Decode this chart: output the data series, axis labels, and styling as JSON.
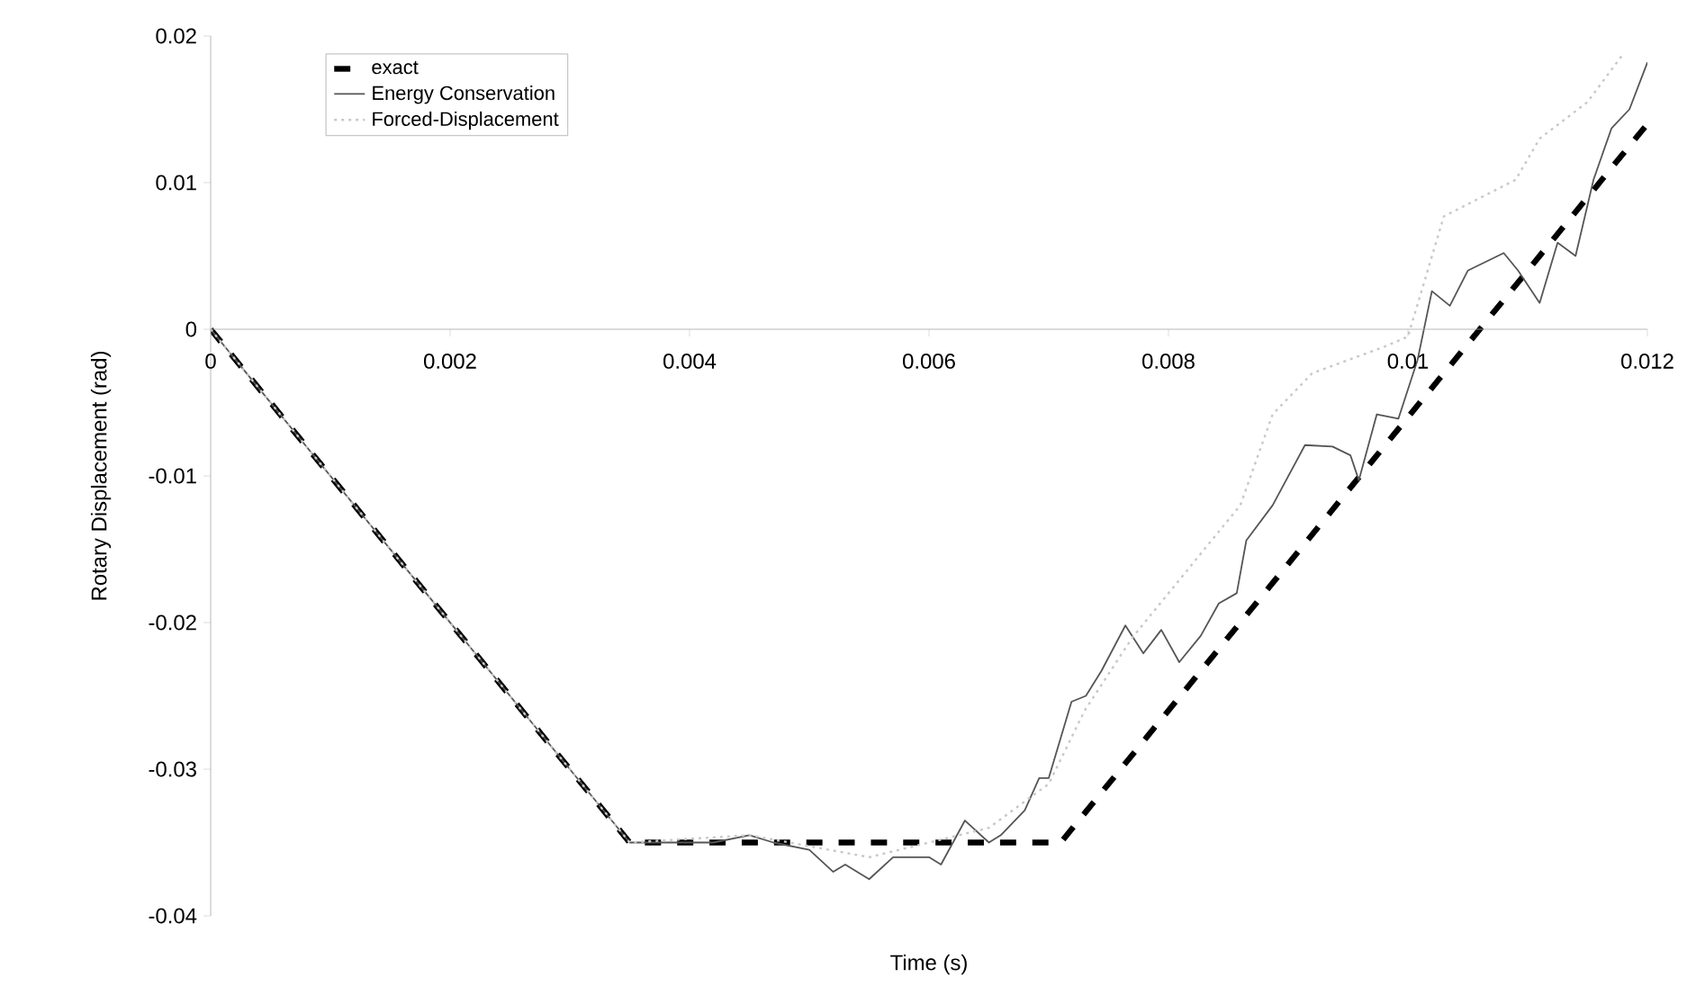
{
  "chart_data": {
    "type": "line",
    "xlabel": "Time (s)",
    "ylabel": "Rotary Displacement (rad)",
    "xlim": [
      0,
      0.012
    ],
    "ylim": [
      -0.04,
      0.02
    ],
    "xticks": [
      0,
      0.002,
      0.004,
      0.006,
      0.008,
      0.01,
      0.012
    ],
    "yticks": [
      -0.04,
      -0.03,
      -0.02,
      -0.01,
      0,
      0.01,
      0.02
    ],
    "legend": "top left",
    "grid": false,
    "series": [
      {
        "name": "exact",
        "color": "#000000",
        "line_style": "dashed",
        "x": [
          0,
          0.0035,
          0.0071,
          0.012
        ],
        "values": [
          0,
          -0.035,
          -0.035,
          0.014
        ]
      },
      {
        "name": "Energy Conservation",
        "color": "#555555",
        "line_style": "solid",
        "x": [
          0,
          0.0035,
          0.0042,
          0.0045,
          0.0047,
          0.005,
          0.0052,
          0.0053,
          0.0055,
          0.0057,
          0.006,
          0.0061,
          0.0063,
          0.0065,
          0.0066,
          0.0068,
          0.00692,
          0.007,
          0.00719,
          0.00731,
          0.00744,
          0.00764,
          0.00779,
          0.00794,
          0.00809,
          0.00827,
          0.00842,
          0.00857,
          0.00865,
          0.00887,
          0.00914,
          0.00937,
          0.00952,
          0.00959,
          0.00974,
          0.00992,
          0.01008,
          0.0102,
          0.01035,
          0.0105,
          0.0108,
          0.01092,
          0.0111,
          0.01125,
          0.0114,
          0.01155,
          0.0117,
          0.01185,
          0.012
        ],
        "values": [
          0,
          -0.035,
          -0.035,
          -0.0345,
          -0.035,
          -0.0355,
          -0.037,
          -0.0365,
          -0.0375,
          -0.036,
          -0.036,
          -0.0365,
          -0.0335,
          -0.035,
          -0.0345,
          -0.0328,
          -0.0306,
          -0.0306,
          -0.0254,
          -0.025,
          -0.0233,
          -0.0202,
          -0.0221,
          -0.0205,
          -0.0227,
          -0.0209,
          -0.0187,
          -0.018,
          -0.0144,
          -0.012,
          -0.0079,
          -0.008,
          -0.0086,
          -0.0103,
          -0.0058,
          -0.0061,
          -0.0021,
          0.0026,
          0.0016,
          0.004,
          0.0052,
          0.004,
          0.0018,
          0.0059,
          0.005,
          0.0102,
          0.0137,
          0.015,
          0.0182
        ]
      },
      {
        "name": "Forced-Displacement",
        "color": "#c8c8c8",
        "line_style": "dotted",
        "x": [
          0,
          0.0035,
          0.0045,
          0.0055,
          0.0065,
          0.007,
          0.0073,
          0.0077,
          0.0082,
          0.0086,
          0.00887,
          0.0092,
          0.0098,
          0.01,
          0.0103,
          0.0109,
          0.0111,
          0.0115,
          0.0118
        ],
        "values": [
          0,
          -0.035,
          -0.0345,
          -0.036,
          -0.034,
          -0.031,
          -0.026,
          -0.021,
          -0.016,
          -0.012,
          -0.0058,
          -0.003,
          -0.0012,
          -0.0005,
          0.0077,
          0.0102,
          0.013,
          0.0155,
          0.0188
        ]
      }
    ]
  }
}
